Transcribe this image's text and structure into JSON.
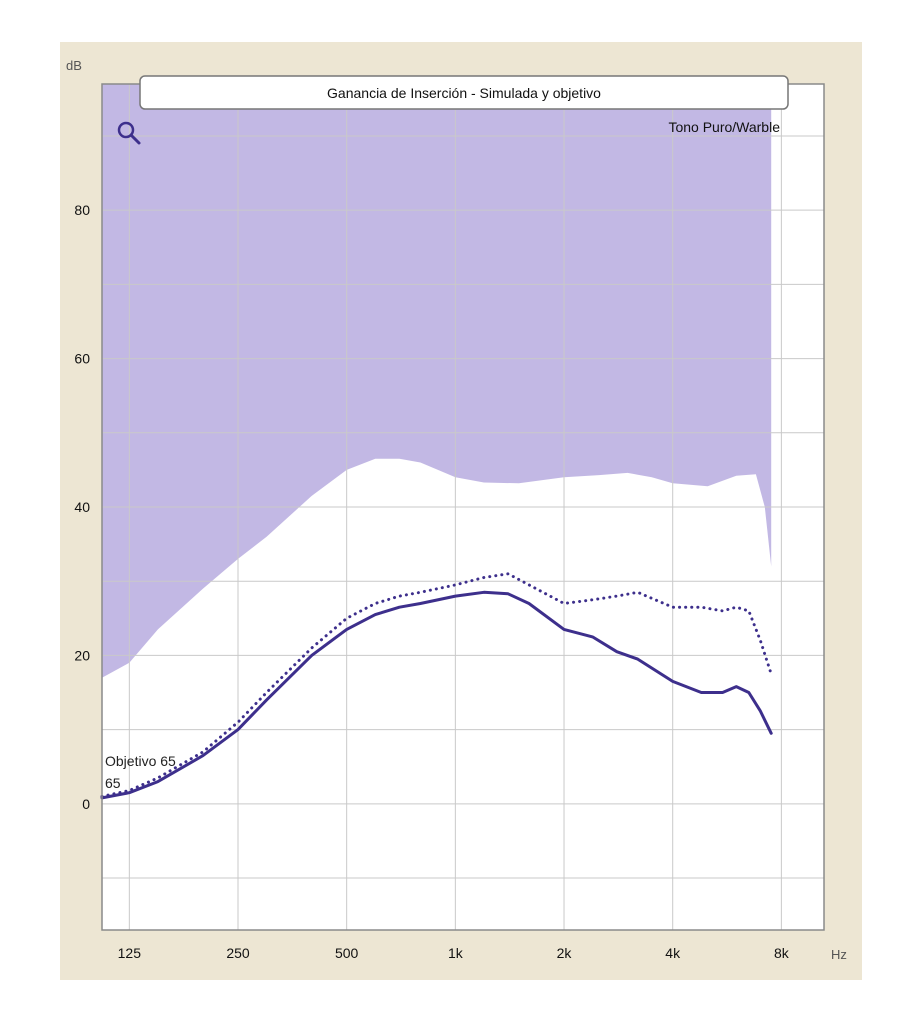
{
  "chart_data": {
    "type": "line",
    "title": "Ganancia de Inserción - Simulada y objetivo",
    "legend": "Tono Puro/Warble",
    "ylabel": "dB",
    "xlabel": "Hz",
    "x_scale": "log",
    "xlim": [
      105,
      10500
    ],
    "ylim": [
      -17,
      97
    ],
    "x_ticks": [
      {
        "value": 125,
        "label": "125"
      },
      {
        "value": 250,
        "label": "250"
      },
      {
        "value": 500,
        "label": "500"
      },
      {
        "value": 1000,
        "label": "1k"
      },
      {
        "value": 2000,
        "label": "2k"
      },
      {
        "value": 4000,
        "label": "4k"
      },
      {
        "value": 8000,
        "label": "8k"
      }
    ],
    "y_ticks": [
      {
        "value": 0,
        "label": "0"
      },
      {
        "value": 20,
        "label": "20"
      },
      {
        "value": 40,
        "label": "40"
      },
      {
        "value": 60,
        "label": "60"
      },
      {
        "value": 80,
        "label": "80"
      }
    ],
    "grid": true,
    "shaded_region": {
      "color": "#b7acdf",
      "upper": 97,
      "lower_x": [
        105,
        125,
        150,
        200,
        250,
        300,
        400,
        500,
        600,
        700,
        800,
        1000,
        1200,
        1500,
        2000,
        2500,
        3000,
        3500,
        4000,
        5000,
        6000,
        6800,
        7200,
        7500
      ],
      "lower_y": [
        17,
        19,
        23.5,
        29,
        33,
        36,
        41.5,
        45,
        46.5,
        46.5,
        46,
        44,
        43.3,
        43.2,
        44,
        44.3,
        44.6,
        44,
        43.2,
        42.8,
        44.2,
        44.4,
        40,
        32
      ]
    },
    "series": [
      {
        "style": "solid",
        "color": "#3d2f8c",
        "x": [
          105,
          125,
          150,
          200,
          250,
          300,
          400,
          500,
          600,
          700,
          800,
          1000,
          1200,
          1400,
          1600,
          2000,
          2400,
          2800,
          3200,
          4000,
          4800,
          5500,
          6000,
          6500,
          7000,
          7500
        ],
        "y": [
          0.8,
          1.5,
          3,
          6.5,
          10,
          14,
          20,
          23.5,
          25.5,
          26.5,
          27,
          28,
          28.5,
          28.3,
          27,
          23.5,
          22.5,
          20.5,
          19.5,
          16.5,
          15,
          15,
          15.8,
          15,
          12.5,
          9.5
        ]
      },
      {
        "style": "dotted",
        "color": "#3d2f8c",
        "x": [
          105,
          125,
          150,
          200,
          250,
          300,
          400,
          500,
          600,
          700,
          800,
          1000,
          1200,
          1400,
          1600,
          2000,
          2400,
          2800,
          3200,
          4000,
          4800,
          5500,
          6000,
          6500,
          7000,
          7500
        ],
        "y": [
          1,
          1.8,
          3.5,
          7,
          11,
          15,
          21,
          25,
          27,
          28,
          28.5,
          29.5,
          30.5,
          31,
          29.5,
          27,
          27.5,
          28,
          28.5,
          26.5,
          26.5,
          26,
          26.5,
          26,
          22,
          17.5
        ]
      }
    ],
    "series_labels": [
      "Objetivo 65",
      "65"
    ]
  }
}
